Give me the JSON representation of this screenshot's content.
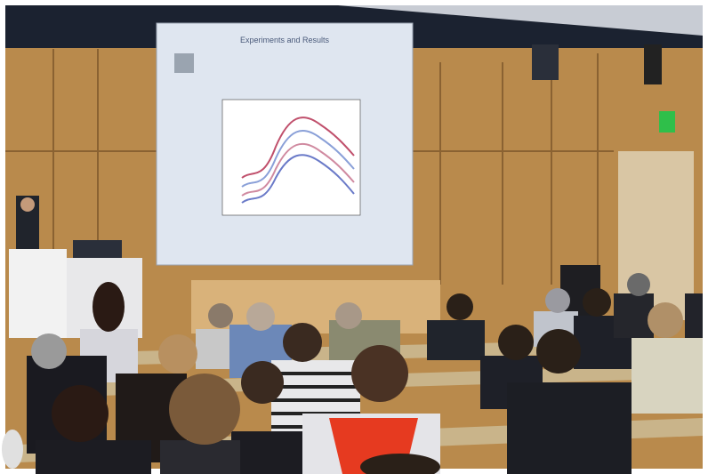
{
  "slide": {
    "title": "Experiments and Results"
  }
}
